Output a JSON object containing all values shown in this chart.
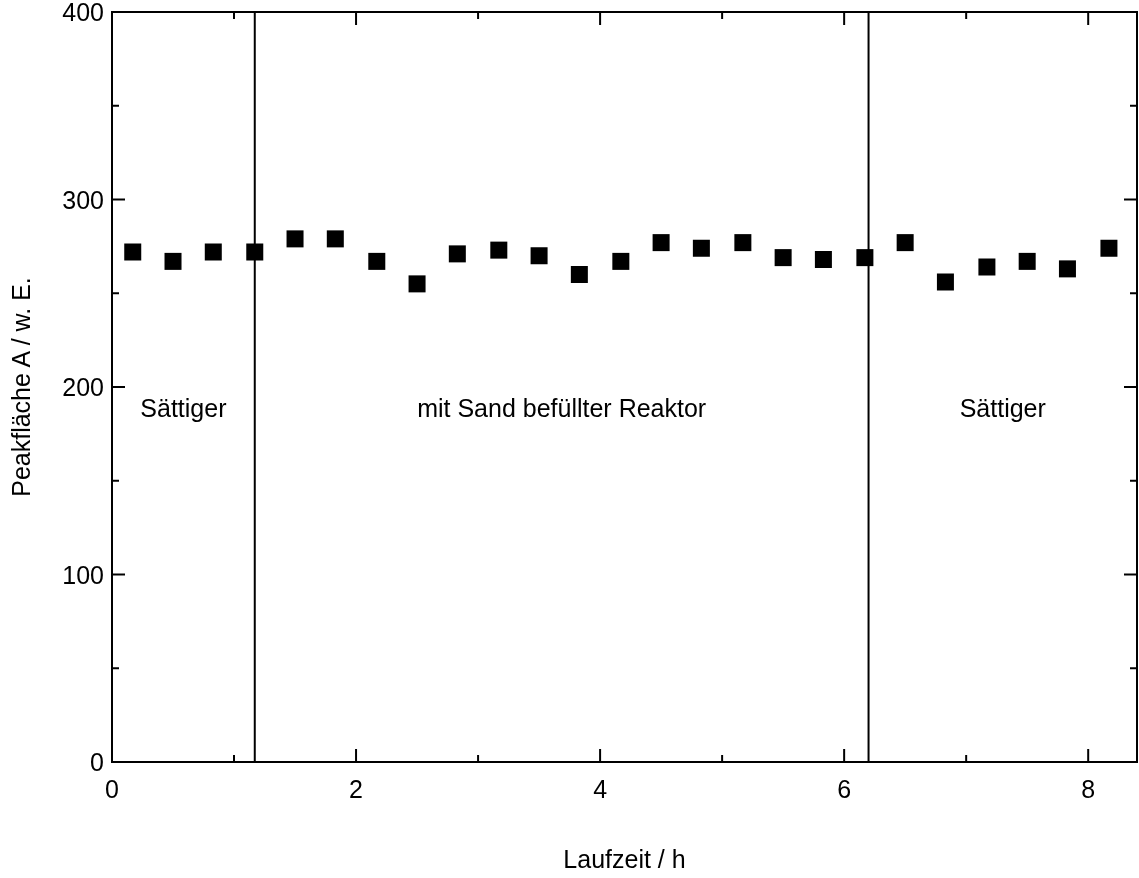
{
  "chart_data": {
    "type": "scatter",
    "xlabel": "Laufzeit / h",
    "ylabel": "Peakfläche A / w. E.",
    "marker": "square",
    "grid": false,
    "x": [
      0.17,
      0.5,
      0.83,
      1.17,
      1.5,
      1.83,
      2.17,
      2.5,
      2.83,
      3.17,
      3.5,
      3.83,
      4.17,
      4.5,
      4.83,
      5.17,
      5.5,
      5.83,
      6.17,
      6.5,
      6.83,
      7.17,
      7.5,
      7.83,
      8.17
    ],
    "series": [
      {
        "color": "#000000",
        "values": [
          272,
          267,
          272,
          272,
          279,
          279,
          267,
          255,
          271,
          273,
          270,
          260,
          267,
          277,
          274,
          277,
          269,
          268,
          269,
          277,
          256,
          264,
          267,
          263,
          274
        ]
      }
    ],
    "xlim": [
      0,
      8.4
    ],
    "xticks": [
      0,
      {
        "value": 1,
        "label": null
      },
      2,
      {
        "value": 3,
        "label": null
      },
      4,
      {
        "value": 5,
        "label": null
      },
      6,
      {
        "value": 7,
        "label": null
      },
      8
    ],
    "ylim": [
      0,
      400
    ],
    "yticks": [
      0,
      {
        "value": 50,
        "label": null
      },
      100,
      {
        "value": 150,
        "label": null
      },
      200,
      {
        "value": 250,
        "label": null
      },
      300,
      {
        "value": 350,
        "label": null
      },
      400
    ],
    "ref_lines": [
      {
        "axis": "x",
        "value": 1.17,
        "color": "#000000"
      },
      {
        "axis": "x",
        "value": 6.2,
        "color": "#000000"
      }
    ],
    "annotations": [
      "Sättiger",
      "mit Sand befüllter Reaktor",
      "Sättiger"
    ]
  }
}
